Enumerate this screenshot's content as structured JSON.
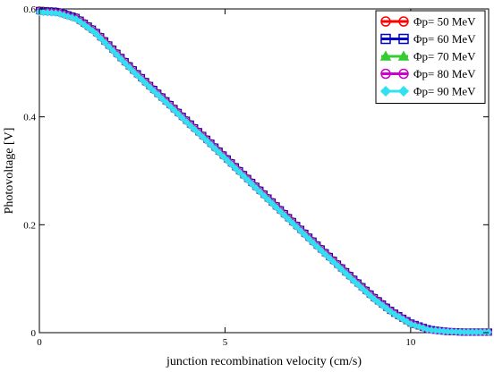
{
  "chart_data": {
    "type": "line",
    "title": "",
    "xlabel": "junction recombination velocity (cm/s)",
    "ylabel": "Photovoltage [V]",
    "xlim": [
      0,
      12.1
    ],
    "ylim": [
      0,
      0.6
    ],
    "xticks": [
      "0",
      "5",
      "10"
    ],
    "yticks": [
      "0",
      "0.2",
      "0.4",
      "0.6"
    ],
    "xtick_values": [
      0,
      5,
      10
    ],
    "ytick_values": [
      0,
      0.2,
      0.4,
      0.6
    ],
    "grid": false,
    "legend_position": "top-right",
    "x": [
      0,
      0.5,
      1,
      1.5,
      2,
      2.5,
      3,
      3.5,
      4,
      4.5,
      5,
      5.5,
      6,
      6.5,
      7,
      7.5,
      8,
      8.5,
      9,
      9.5,
      10,
      10.5,
      11,
      11.5,
      12.1
    ],
    "series": [
      {
        "name": "Φp= 50 MeV",
        "color": "#ff0000",
        "marker": "x-circle",
        "values": [
          0.598,
          0.596,
          0.585,
          0.56,
          0.525,
          0.49,
          0.457,
          0.425,
          0.392,
          0.36,
          0.327,
          0.294,
          0.261,
          0.228,
          0.195,
          0.162,
          0.13,
          0.098,
          0.067,
          0.04,
          0.018,
          0.006,
          0.002,
          0.001,
          0.001
        ]
      },
      {
        "name": "Φp= 60 MeV",
        "color": "#0000cc",
        "marker": "square",
        "values": [
          0.597,
          0.595,
          0.584,
          0.559,
          0.524,
          0.489,
          0.456,
          0.424,
          0.391,
          0.359,
          0.326,
          0.293,
          0.26,
          0.227,
          0.194,
          0.161,
          0.129,
          0.097,
          0.066,
          0.039,
          0.018,
          0.006,
          0.002,
          0.001,
          0.001
        ]
      },
      {
        "name": "Φp= 70 MeV",
        "color": "#33cc33",
        "marker": "triangle",
        "values": [
          0.596,
          0.594,
          0.583,
          0.558,
          0.523,
          0.488,
          0.455,
          0.423,
          0.39,
          0.358,
          0.325,
          0.292,
          0.259,
          0.226,
          0.193,
          0.16,
          0.128,
          0.096,
          0.065,
          0.039,
          0.017,
          0.006,
          0.002,
          0.001,
          0.001
        ]
      },
      {
        "name": "Φp= 80 MeV",
        "color": "#cc00cc",
        "marker": "circle",
        "values": [
          0.595,
          0.593,
          0.582,
          0.557,
          0.522,
          0.487,
          0.454,
          0.422,
          0.389,
          0.357,
          0.324,
          0.291,
          0.258,
          0.225,
          0.192,
          0.159,
          0.127,
          0.095,
          0.064,
          0.038,
          0.017,
          0.005,
          0.002,
          0.001,
          0.001
        ]
      },
      {
        "name": "Φp= 90 MeV",
        "color": "#33e0f0",
        "marker": "diamond",
        "values": [
          0.594,
          0.592,
          0.581,
          0.556,
          0.521,
          0.486,
          0.453,
          0.421,
          0.388,
          0.356,
          0.323,
          0.29,
          0.257,
          0.224,
          0.191,
          0.158,
          0.126,
          0.094,
          0.063,
          0.037,
          0.016,
          0.005,
          0.002,
          0.001,
          0.001
        ]
      }
    ]
  }
}
